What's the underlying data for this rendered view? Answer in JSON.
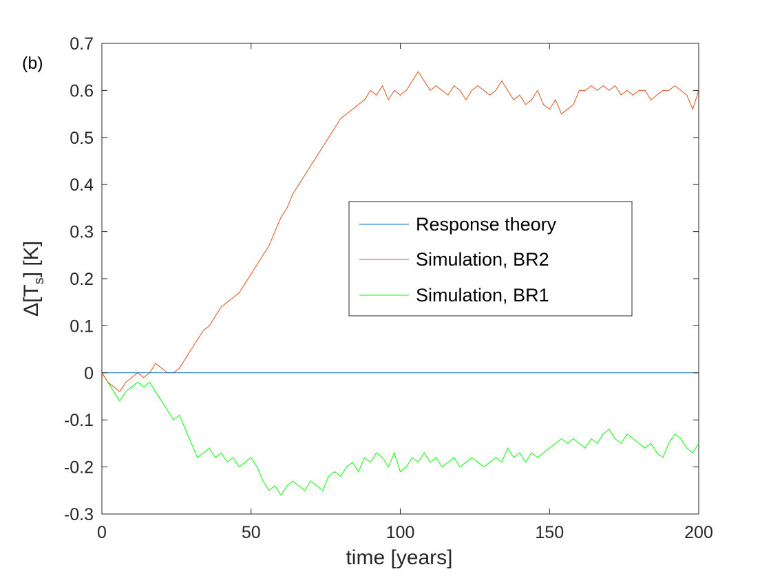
{
  "chart_data": {
    "type": "line",
    "panel_label": "(b)",
    "title": "",
    "xlabel": "time [years]",
    "ylabel": "Δ[T_s] [K]",
    "ylabel_parts": {
      "pre": "Δ[T",
      "sub": "s",
      "post": "] [K]"
    },
    "xlim": [
      0,
      200
    ],
    "ylim": [
      -0.3,
      0.7
    ],
    "xticks": [
      0,
      50,
      100,
      150,
      200
    ],
    "xtick_labels": [
      "0",
      "50",
      "100",
      "150",
      "200"
    ],
    "yticks": [
      -0.3,
      -0.2,
      -0.1,
      0,
      0.1,
      0.2,
      0.3,
      0.4,
      0.5,
      0.6,
      0.7
    ],
    "ytick_labels": [
      "-0.3",
      "-0.2",
      "-0.1",
      "0",
      "0.1",
      "0.2",
      "0.3",
      "0.4",
      "0.5",
      "0.6",
      "0.7"
    ],
    "grid": false,
    "legend_position": "center-right",
    "series": [
      {
        "name": "Response theory",
        "color": "#0072BD",
        "x": [
          0,
          200
        ],
        "y": [
          0,
          0
        ]
      },
      {
        "name": "Simulation, BR2",
        "color": "#D95319",
        "x": [
          0,
          2,
          4,
          6,
          8,
          10,
          12,
          14,
          16,
          18,
          20,
          22,
          24,
          26,
          28,
          30,
          32,
          34,
          36,
          38,
          40,
          42,
          44,
          46,
          48,
          50,
          52,
          54,
          56,
          58,
          60,
          62,
          64,
          66,
          68,
          70,
          72,
          74,
          76,
          78,
          80,
          82,
          84,
          86,
          88,
          90,
          92,
          94,
          96,
          98,
          100,
          102,
          104,
          106,
          108,
          110,
          112,
          114,
          116,
          118,
          120,
          122,
          124,
          126,
          128,
          130,
          132,
          134,
          136,
          138,
          140,
          142,
          144,
          146,
          148,
          150,
          152,
          154,
          156,
          158,
          160,
          162,
          164,
          166,
          168,
          170,
          172,
          174,
          176,
          178,
          180,
          182,
          184,
          186,
          188,
          190,
          192,
          194,
          196,
          198,
          200
        ],
        "y": [
          0.0,
          -0.02,
          -0.03,
          -0.04,
          -0.02,
          -0.01,
          0.0,
          -0.01,
          0.0,
          0.02,
          0.01,
          0.0,
          0.0,
          0.01,
          0.03,
          0.05,
          0.07,
          0.09,
          0.1,
          0.12,
          0.14,
          0.15,
          0.16,
          0.17,
          0.19,
          0.21,
          0.23,
          0.25,
          0.27,
          0.3,
          0.33,
          0.35,
          0.38,
          0.4,
          0.42,
          0.44,
          0.46,
          0.48,
          0.5,
          0.52,
          0.54,
          0.55,
          0.56,
          0.57,
          0.58,
          0.6,
          0.59,
          0.61,
          0.58,
          0.6,
          0.59,
          0.6,
          0.62,
          0.64,
          0.62,
          0.6,
          0.61,
          0.6,
          0.59,
          0.61,
          0.6,
          0.58,
          0.6,
          0.61,
          0.6,
          0.59,
          0.6,
          0.62,
          0.6,
          0.58,
          0.59,
          0.57,
          0.58,
          0.6,
          0.57,
          0.56,
          0.58,
          0.55,
          0.56,
          0.57,
          0.6,
          0.6,
          0.61,
          0.6,
          0.61,
          0.6,
          0.61,
          0.59,
          0.6,
          0.59,
          0.6,
          0.6,
          0.58,
          0.59,
          0.6,
          0.6,
          0.61,
          0.6,
          0.59,
          0.56,
          0.6
        ]
      },
      {
        "name": "Simulation, BR1",
        "color": "#00FF00",
        "x": [
          0,
          2,
          4,
          6,
          8,
          10,
          12,
          14,
          16,
          18,
          20,
          22,
          24,
          26,
          28,
          30,
          32,
          34,
          36,
          38,
          40,
          42,
          44,
          46,
          48,
          50,
          52,
          54,
          56,
          58,
          60,
          62,
          64,
          66,
          68,
          70,
          72,
          74,
          76,
          78,
          80,
          82,
          84,
          86,
          88,
          90,
          92,
          94,
          96,
          98,
          100,
          102,
          104,
          106,
          108,
          110,
          112,
          114,
          116,
          118,
          120,
          122,
          124,
          126,
          128,
          130,
          132,
          134,
          136,
          138,
          140,
          142,
          144,
          146,
          148,
          150,
          152,
          154,
          156,
          158,
          160,
          162,
          164,
          166,
          168,
          170,
          172,
          174,
          176,
          178,
          180,
          182,
          184,
          186,
          188,
          190,
          192,
          194,
          196,
          198,
          200
        ],
        "y": [
          0.0,
          -0.02,
          -0.04,
          -0.06,
          -0.04,
          -0.03,
          -0.02,
          -0.03,
          -0.02,
          -0.04,
          -0.06,
          -0.08,
          -0.1,
          -0.09,
          -0.12,
          -0.15,
          -0.18,
          -0.17,
          -0.16,
          -0.18,
          -0.17,
          -0.19,
          -0.18,
          -0.2,
          -0.19,
          -0.18,
          -0.2,
          -0.23,
          -0.25,
          -0.24,
          -0.26,
          -0.24,
          -0.23,
          -0.24,
          -0.25,
          -0.23,
          -0.24,
          -0.25,
          -0.22,
          -0.21,
          -0.22,
          -0.2,
          -0.19,
          -0.21,
          -0.18,
          -0.19,
          -0.17,
          -0.18,
          -0.2,
          -0.17,
          -0.21,
          -0.2,
          -0.18,
          -0.19,
          -0.17,
          -0.19,
          -0.18,
          -0.2,
          -0.19,
          -0.18,
          -0.2,
          -0.19,
          -0.18,
          -0.19,
          -0.2,
          -0.19,
          -0.18,
          -0.19,
          -0.16,
          -0.18,
          -0.17,
          -0.19,
          -0.17,
          -0.18,
          -0.17,
          -0.16,
          -0.15,
          -0.14,
          -0.15,
          -0.14,
          -0.15,
          -0.16,
          -0.14,
          -0.15,
          -0.13,
          -0.12,
          -0.14,
          -0.15,
          -0.13,
          -0.14,
          -0.15,
          -0.16,
          -0.15,
          -0.17,
          -0.18,
          -0.15,
          -0.13,
          -0.14,
          -0.16,
          -0.17,
          -0.15
        ]
      }
    ]
  }
}
